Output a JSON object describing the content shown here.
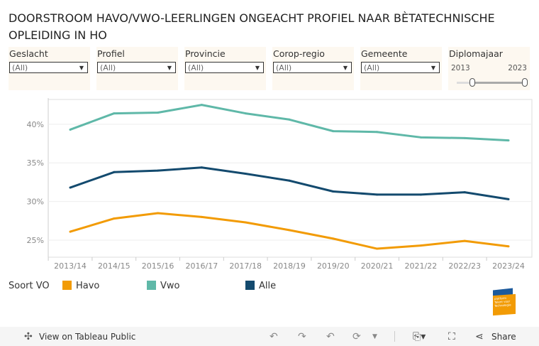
{
  "title": "DOORSTROOM HAVO/VWO-LEERLINGEN ONGEACHT PROFIEL NAAR BÈTATECHNISCHE OPLEIDING IN HO",
  "filters": [
    {
      "label": "Geslacht",
      "value": "(All)"
    },
    {
      "label": "Profiel",
      "value": "(All)"
    },
    {
      "label": "Provincie",
      "value": "(All)"
    },
    {
      "label": "Corop-regio",
      "value": "(All)"
    },
    {
      "label": "Gemeente",
      "value": "(All)"
    }
  ],
  "slider": {
    "label": "Diplomajaar",
    "min": "2013",
    "max": "2023",
    "range": [
      2013,
      2023
    ]
  },
  "chart_data": {
    "type": "line",
    "categories": [
      "2013/14",
      "2014/15",
      "2015/16",
      "2016/17",
      "2017/18",
      "2018/19",
      "2019/20",
      "2020/21",
      "2021/22",
      "2022/23",
      "2023/24"
    ],
    "yticks": [
      "25%",
      "30%",
      "35%",
      "40%"
    ],
    "ytick_values": [
      25,
      30,
      35,
      40
    ],
    "ylim": [
      22.8,
      43.2
    ],
    "series": [
      {
        "name": "Havo",
        "color": "#f29b05",
        "values": [
          26.1,
          27.8,
          28.5,
          28.0,
          27.3,
          26.3,
          25.2,
          23.9,
          24.3,
          24.9,
          24.2
        ]
      },
      {
        "name": "Vwo",
        "color": "#5fb8a8",
        "values": [
          39.3,
          41.4,
          41.5,
          42.5,
          41.4,
          40.6,
          39.1,
          39.0,
          38.3,
          38.2,
          37.9
        ]
      },
      {
        "name": "Alle",
        "color": "#134a6e",
        "values": [
          31.8,
          33.8,
          34.0,
          34.4,
          33.6,
          32.7,
          31.3,
          30.9,
          30.9,
          31.2,
          30.3
        ]
      }
    ]
  },
  "legend": {
    "title": "Soort VO"
  },
  "logo": {
    "text": "platform Talent voor Technologie"
  },
  "toolbar": {
    "view_label": "View on Tableau Public",
    "share_label": "Share"
  }
}
